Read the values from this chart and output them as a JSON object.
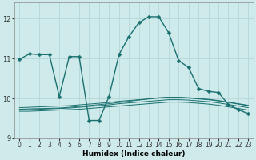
{
  "xlabel": "Humidex (Indice chaleur)",
  "xlim": [
    -0.5,
    23.5
  ],
  "ylim": [
    9.0,
    12.4
  ],
  "yticks": [
    9,
    10,
    11,
    12
  ],
  "xticks": [
    0,
    1,
    2,
    3,
    4,
    5,
    6,
    7,
    8,
    9,
    10,
    11,
    12,
    13,
    14,
    15,
    16,
    17,
    18,
    19,
    20,
    21,
    22,
    23
  ],
  "bg_color": "#ceeaea",
  "grid_color": "#b0d4d4",
  "line_color": "#1a7070",
  "series_main": {
    "x": [
      0,
      1,
      2,
      3,
      4,
      5,
      6,
      7,
      8,
      9,
      10,
      11,
      12,
      13,
      14,
      15,
      16,
      17,
      18,
      19,
      20,
      21,
      22,
      23
    ],
    "y": [
      10.98,
      11.12,
      11.1,
      11.1,
      10.05,
      11.05,
      11.05,
      9.45,
      9.45,
      10.05,
      11.1,
      11.55,
      11.9,
      12.05,
      12.05,
      11.65,
      10.95,
      10.78,
      10.25,
      10.18,
      10.15,
      9.85,
      9.72,
      9.62
    ],
    "markersize": 2.5,
    "linewidth": 1.0
  },
  "series_flat": [
    {
      "x": [
        0,
        1,
        2,
        3,
        4,
        5,
        6,
        7,
        8,
        9,
        10,
        11,
        12,
        13,
        14,
        15,
        16,
        17,
        18,
        19,
        20,
        21,
        22,
        23
      ],
      "y": [
        9.72,
        9.72,
        9.73,
        9.74,
        9.75,
        9.76,
        9.78,
        9.8,
        9.82,
        9.84,
        9.87,
        9.89,
        9.91,
        9.93,
        9.95,
        9.97,
        9.97,
        9.96,
        9.94,
        9.92,
        9.89,
        9.85,
        9.81,
        9.77
      ],
      "linewidth": 0.7
    },
    {
      "x": [
        0,
        1,
        2,
        3,
        4,
        5,
        6,
        7,
        8,
        9,
        10,
        11,
        12,
        13,
        14,
        15,
        16,
        17,
        18,
        19,
        20,
        21,
        22,
        23
      ],
      "y": [
        9.77,
        9.78,
        9.79,
        9.8,
        9.81,
        9.82,
        9.84,
        9.86,
        9.88,
        9.9,
        9.93,
        9.95,
        9.97,
        9.99,
        10.01,
        10.03,
        10.03,
        10.02,
        10.0,
        9.98,
        9.95,
        9.91,
        9.87,
        9.83
      ],
      "linewidth": 0.7
    },
    {
      "x": [
        0,
        1,
        2,
        3,
        4,
        5,
        6,
        7,
        8,
        9,
        10,
        11,
        12,
        13,
        14,
        15,
        16,
        17,
        18,
        19,
        20,
        21,
        22,
        23
      ],
      "y": [
        9.68,
        9.68,
        9.69,
        9.7,
        9.71,
        9.72,
        9.73,
        9.75,
        9.77,
        9.79,
        9.81,
        9.83,
        9.85,
        9.87,
        9.89,
        9.91,
        9.91,
        9.9,
        9.88,
        9.86,
        9.83,
        9.79,
        9.75,
        9.71
      ],
      "linewidth": 0.7
    },
    {
      "x": [
        0,
        1,
        4,
        5,
        6,
        9,
        10,
        11,
        12,
        13,
        14,
        15,
        16,
        17,
        18,
        19,
        20,
        21,
        22,
        23
      ],
      "y": [
        9.73,
        9.74,
        9.76,
        9.78,
        9.8,
        9.87,
        9.9,
        9.93,
        9.96,
        9.99,
        10.02,
        10.03,
        10.03,
        10.01,
        9.99,
        9.97,
        9.94,
        9.9,
        9.86,
        9.82
      ],
      "linewidth": 0.7
    }
  ]
}
